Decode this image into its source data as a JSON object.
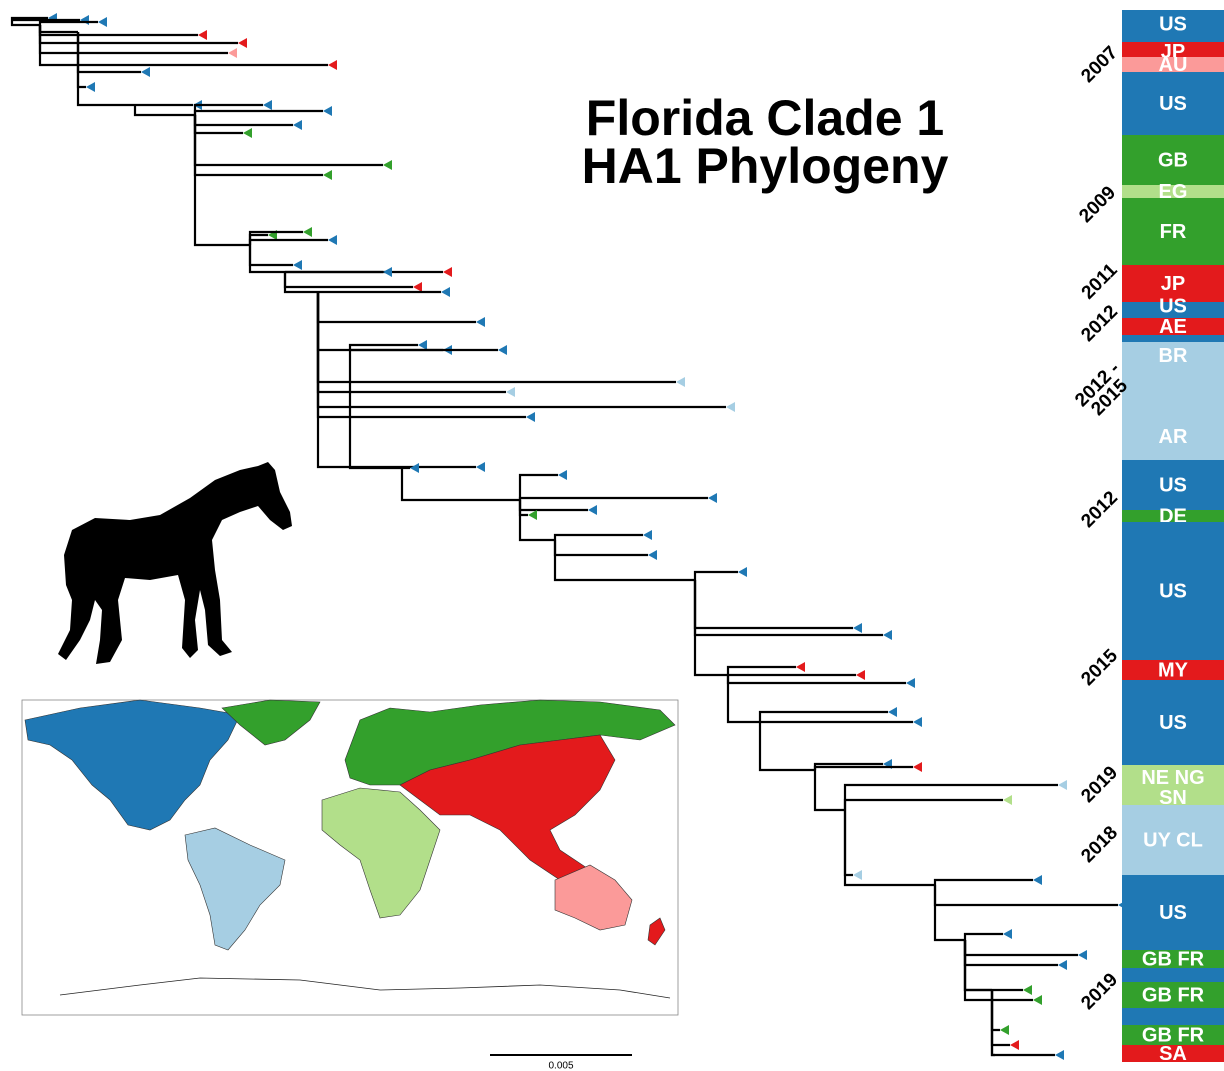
{
  "title": [
    "Florida Clade 1",
    "HA1 Phylogeny"
  ],
  "scale_bar": "0.005",
  "sidebar": {
    "segments": [
      {
        "label": "US",
        "color": "#1f78b4"
      },
      {
        "label": "JP",
        "color": "#e31a1c"
      },
      {
        "label": "AU",
        "color": "#fb9a99"
      },
      {
        "label": "US",
        "color": "#1f78b4"
      },
      {
        "label": "GB",
        "color": "#33a02c"
      },
      {
        "label": "EG",
        "color": "#b2df8a"
      },
      {
        "label": "FR",
        "color": "#33a02c"
      },
      {
        "label": "JP",
        "color": "#e31a1c"
      },
      {
        "label": "US",
        "color": "#1f78b4"
      },
      {
        "label": "AE",
        "color": "#e31a1c"
      },
      {
        "label": "BR",
        "color": "#a6cee3"
      },
      {
        "label": "AR",
        "color": "#a6cee3"
      },
      {
        "label": "US",
        "color": "#1f78b4"
      },
      {
        "label": "DE",
        "color": "#33a02c"
      },
      {
        "label": "US",
        "color": "#1f78b4"
      },
      {
        "label": "MY",
        "color": "#e31a1c"
      },
      {
        "label": "US",
        "color": "#1f78b4"
      },
      {
        "label": "NE NG",
        "color": "#b2df8a"
      },
      {
        "label": "SN",
        "color": "#b2df8a"
      },
      {
        "label": "UY CL",
        "color": "#a6cee3"
      },
      {
        "label": "US",
        "color": "#1f78b4"
      },
      {
        "label": "GB FR",
        "color": "#33a02c"
      },
      {
        "label": "GB FR",
        "color": "#33a02c"
      },
      {
        "label": "GB FR",
        "color": "#33a02c"
      },
      {
        "label": "SA",
        "color": "#e31a1c"
      }
    ]
  },
  "years": [
    "2007",
    "2009",
    "2011",
    "2012",
    "2012 -",
    "2015",
    "2012",
    "2015",
    "2019",
    "2018",
    "2019"
  ]
}
